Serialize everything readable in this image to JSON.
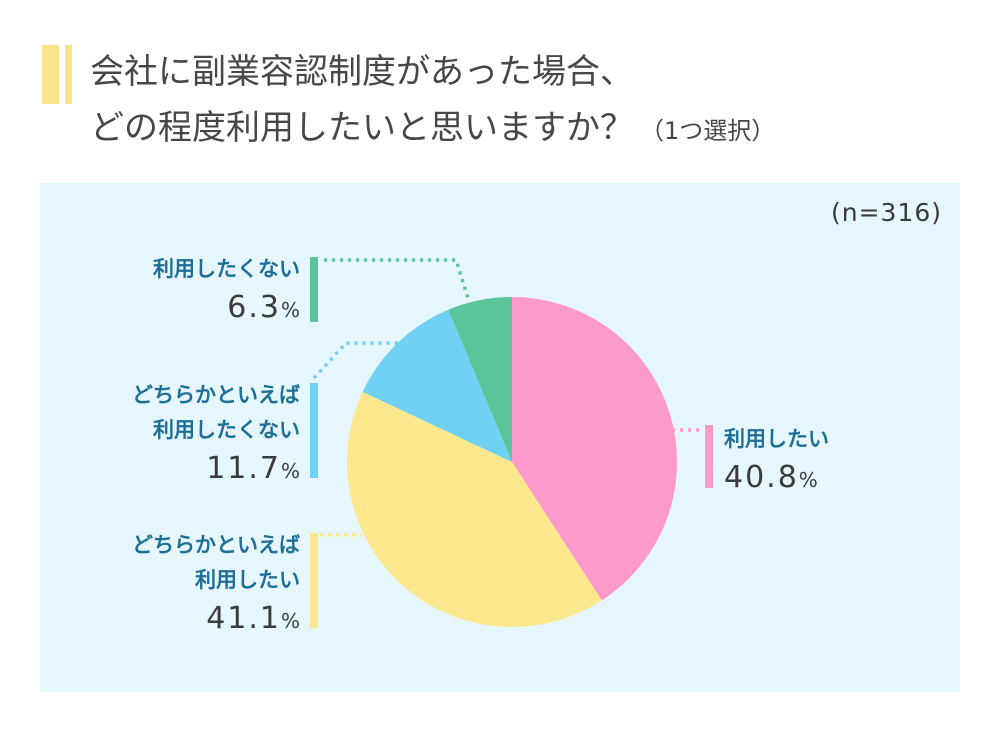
{
  "title": {
    "line1": "会社に副業容認制度があった場合、",
    "line2": "どの程度利用したいと思いますか？",
    "line2_note": "（1つ選択）"
  },
  "panel": {
    "n_label": "(n=316)"
  },
  "colors": {
    "panel_background": "#E5F6FD",
    "title_accent": "#FAE58A",
    "label_text": "#1E6F97",
    "value_text": "#3B3B3B",
    "title_text": "#474747"
  },
  "chart_data": {
    "type": "pie",
    "title": "会社に副業容認制度があった場合、どの程度利用したいと思いますか？（1つ選択）",
    "n": 316,
    "start_angle_deg": 0,
    "direction": "clockwise",
    "legend_position": "callouts",
    "segments": [
      {
        "label": "利用したい",
        "value": 40.8,
        "color": "#FC9ACB"
      },
      {
        "label": "どちらかといえば利用したい",
        "value": 41.1,
        "color": "#FDE88E"
      },
      {
        "label": "どちらかといえば利用したくない",
        "value": 11.7,
        "color": "#70D1F4"
      },
      {
        "label": "利用したくない",
        "value": 6.3,
        "color": "#5CC49B"
      }
    ]
  },
  "callouts": [
    {
      "lines": [
        "利用したい"
      ],
      "value_text": "40.8",
      "unit": "%",
      "color": "#FC9ACB"
    },
    {
      "lines": [
        "どちらかといえば",
        "利用したい"
      ],
      "value_text": "41.1",
      "unit": "%",
      "color": "#FDE88E"
    },
    {
      "lines": [
        "どちらかといえば",
        "利用したくない"
      ],
      "value_text": "11.7",
      "unit": "%",
      "color": "#70D1F4"
    },
    {
      "lines": [
        "利用したくない"
      ],
      "value_text": "6.3",
      "unit": "%",
      "color": "#5CC49B"
    }
  ]
}
